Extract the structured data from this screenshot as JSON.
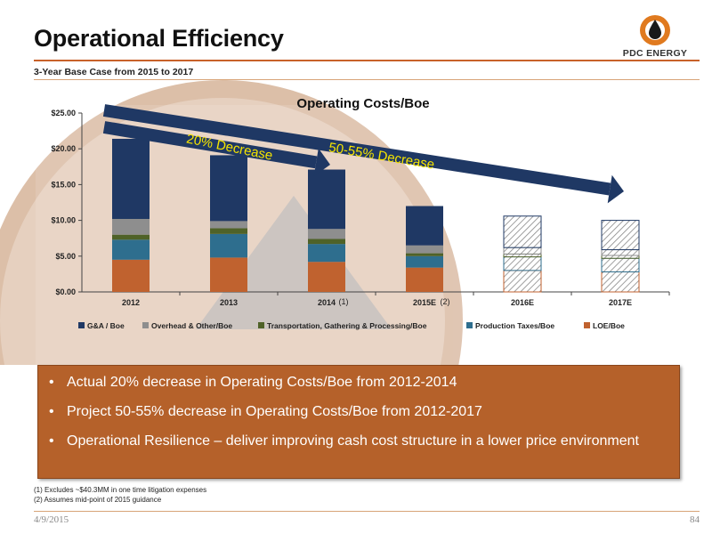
{
  "slide": {
    "title": "Operational Efficiency",
    "subtitle": "3-Year Base Case from 2015 to 2017",
    "logo_text": "PDC ENERGY",
    "date": "4/9/2015",
    "page": "84"
  },
  "bullets": [
    "Actual 20% decrease in Operating Costs/Boe from 2012-2014",
    "Project 50-55% decrease in Operating Costs/Boe from 2012-2017",
    "Operational Resilience – deliver improving cash cost structure in a lower price environment"
  ],
  "footnotes": [
    "(1) Excludes ~$40.3MM in one time litigation expenses",
    "(2) Assumes mid-point of 2015 guidance"
  ],
  "colors": {
    "accent": "#c8622a",
    "bullet_box": "#b5612a",
    "arrow": "#1f3864",
    "arrow_text": "#f5e400"
  },
  "chart_data": {
    "type": "bar",
    "stacked": true,
    "title": "Operating Costs/Boe",
    "categories": [
      "2012",
      "2013",
      "2014",
      "2015E",
      "2016E",
      "2017E"
    ],
    "category_notes": [
      "",
      "",
      "(1)",
      "(2)",
      "",
      ""
    ],
    "projected": [
      false,
      false,
      false,
      false,
      true,
      true
    ],
    "ylim": [
      0,
      25
    ],
    "yticks": [
      0,
      5,
      10,
      15,
      20,
      25
    ],
    "ytick_labels": [
      "$0.00",
      "$5.00",
      "$10.00",
      "$15.00",
      "$20.00",
      "$25.00"
    ],
    "legend_position": "bottom",
    "series": [
      {
        "name": "LOE/Boe",
        "color": "#c0622f",
        "values": [
          4.5,
          4.8,
          4.2,
          3.4,
          3.0,
          2.8
        ]
      },
      {
        "name": "Production Taxes/Boe",
        "color": "#2e6e8e",
        "values": [
          2.8,
          3.3,
          2.5,
          1.6,
          1.9,
          1.9
        ]
      },
      {
        "name": "Transportation, Gathering & Processing/Boe",
        "color": "#4f6228",
        "values": [
          0.7,
          0.8,
          0.7,
          0.4,
          0.4,
          0.4
        ]
      },
      {
        "name": "Overhead & Other/Boe",
        "color": "#8e8e8e",
        "values": [
          2.2,
          1.0,
          1.4,
          1.1,
          0.9,
          0.8
        ]
      },
      {
        "name": "G&A / Boe",
        "color": "#1f3864",
        "values": [
          11.2,
          9.2,
          8.3,
          5.5,
          4.4,
          4.1
        ]
      }
    ],
    "legend_order": [
      "G&A / Boe",
      "Overhead & Other/Boe",
      "Transportation, Gathering & Processing/Boe",
      "Production Taxes/Boe",
      "LOE/Boe"
    ],
    "annotations": [
      {
        "text": "20% Decrease",
        "from": "2012",
        "to": "2014"
      },
      {
        "text": "50-55% Decrease",
        "from": "2012",
        "to": "2017E"
      }
    ]
  }
}
